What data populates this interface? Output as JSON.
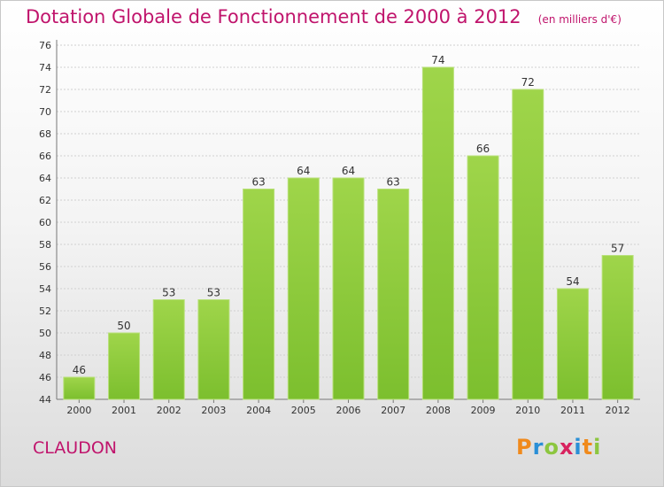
{
  "chart_data": {
    "type": "bar",
    "title": "Dotation Globale de Fonctionnement de 2000 à 2012",
    "subtitle": "(en milliers d'€)",
    "categories": [
      "2000",
      "2001",
      "2002",
      "2003",
      "2004",
      "2005",
      "2006",
      "2007",
      "2008",
      "2009",
      "2010",
      "2011",
      "2012"
    ],
    "values": [
      46,
      50,
      53,
      53,
      63,
      64,
      64,
      63,
      74,
      66,
      72,
      54,
      57
    ],
    "ylim": [
      44,
      76
    ],
    "yticks": [
      44,
      46,
      48,
      50,
      52,
      54,
      56,
      58,
      60,
      62,
      64,
      66,
      68,
      70,
      72,
      74,
      76
    ],
    "grid": true,
    "bar_color": "#7cbf2e",
    "bar_color_light": "#9fd54a",
    "xlabel": "",
    "ylabel": ""
  },
  "footer": {
    "commune": "CLAUDON",
    "logo_text": "Proxiti"
  },
  "colors": {
    "title": "#c0146c",
    "grid": "#d0d0d0",
    "axis": "#777777"
  }
}
